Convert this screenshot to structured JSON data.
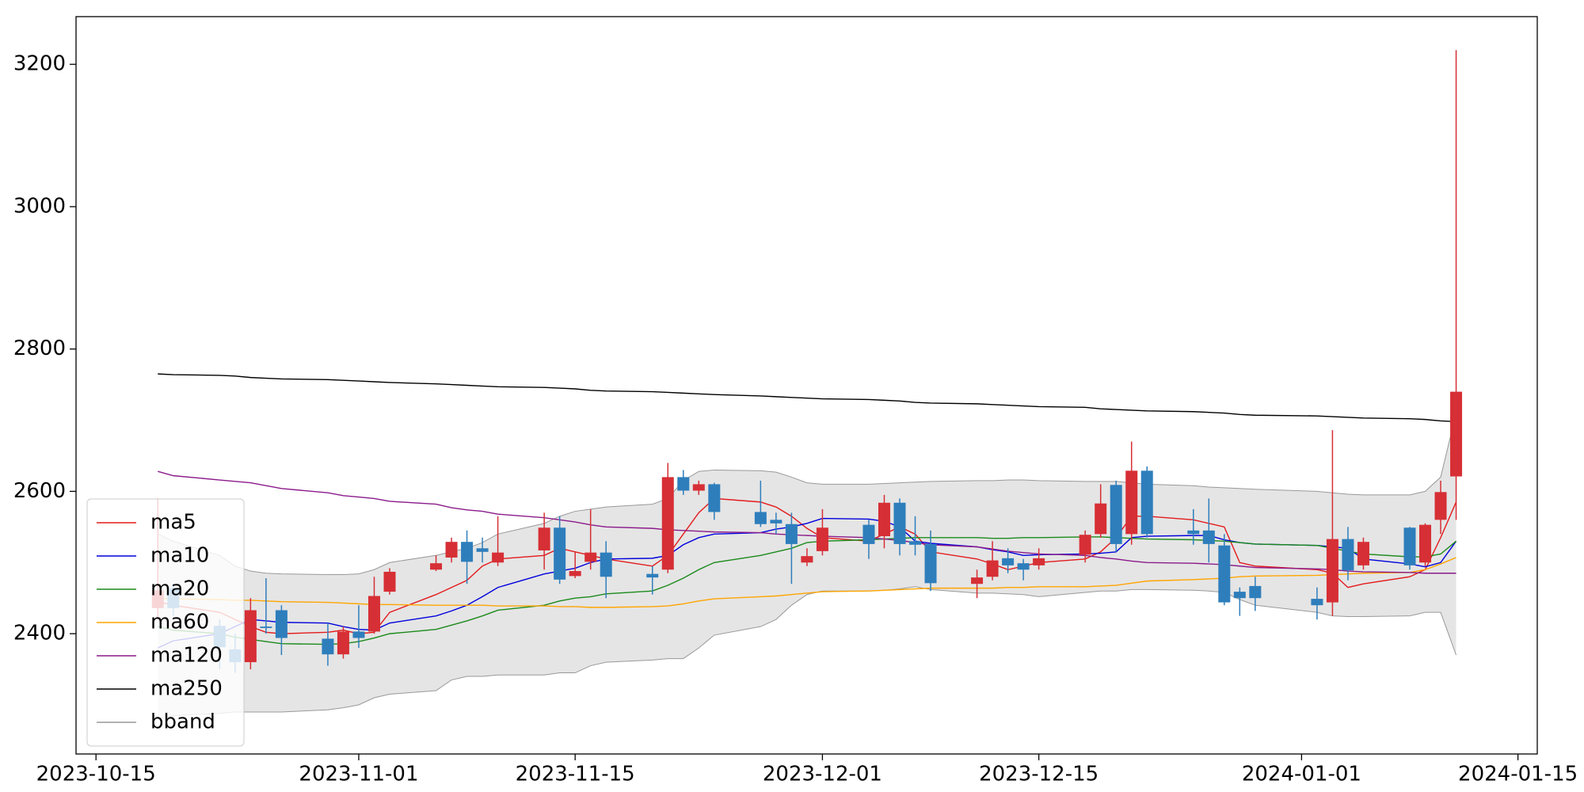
{
  "chart_data": {
    "type": "candlestick",
    "x": [
      "2023-10-19",
      "2023-10-20",
      "2023-10-23",
      "2023-10-24",
      "2023-10-25",
      "2023-10-26",
      "2023-10-27",
      "2023-10-30",
      "2023-10-31",
      "2023-11-01",
      "2023-11-02",
      "2023-11-03",
      "2023-11-06",
      "2023-11-07",
      "2023-11-08",
      "2023-11-09",
      "2023-11-10",
      "2023-11-13",
      "2023-11-14",
      "2023-11-15",
      "2023-11-16",
      "2023-11-17",
      "2023-11-20",
      "2023-11-21",
      "2023-11-22",
      "2023-11-23",
      "2023-11-24",
      "2023-11-27",
      "2023-11-28",
      "2023-11-29",
      "2023-11-30",
      "2023-12-01",
      "2023-12-04",
      "2023-12-05",
      "2023-12-06",
      "2023-12-07",
      "2023-12-08",
      "2023-12-11",
      "2023-12-12",
      "2023-12-13",
      "2023-12-14",
      "2023-12-15",
      "2023-12-18",
      "2023-12-19",
      "2023-12-20",
      "2023-12-21",
      "2023-12-22",
      "2023-12-25",
      "2023-12-26",
      "2023-12-27",
      "2023-12-28",
      "2023-12-29",
      "2024-01-02",
      "2024-01-03",
      "2024-01-04",
      "2024-01-05",
      "2024-01-08",
      "2024-01-09",
      "2024-01-10",
      "2024-01-11"
    ],
    "open": [
      2436,
      2464,
      2411,
      2378,
      2360,
      2410,
      2433,
      2393,
      2371,
      2403,
      2403,
      2459,
      2490,
      2507,
      2529,
      2520,
      2500,
      2517,
      2549,
      2481,
      2501,
      2514,
      2484,
      2490,
      2620,
      2601,
      2610,
      2571,
      2560,
      2554,
      2500,
      2516,
      2553,
      2537,
      2584,
      2530,
      2526,
      2470,
      2480,
      2506,
      2499,
      2496,
      2511,
      2540,
      2609,
      2540,
      2629,
      2545,
      2545,
      2524,
      2459,
      2467,
      2449,
      2444,
      2533,
      2496,
      2549,
      2500,
      2560,
      2621
    ],
    "high": [
      2590,
      2470,
      2420,
      2400,
      2450,
      2478,
      2440,
      2415,
      2410,
      2440,
      2480,
      2492,
      2510,
      2535,
      2545,
      2535,
      2565,
      2570,
      2565,
      2515,
      2575,
      2530,
      2495,
      2640,
      2630,
      2615,
      2612,
      2615,
      2570,
      2570,
      2520,
      2575,
      2560,
      2595,
      2590,
      2565,
      2545,
      2490,
      2530,
      2520,
      2505,
      2520,
      2545,
      2610,
      2615,
      2670,
      2635,
      2575,
      2590,
      2540,
      2465,
      2480,
      2465,
      2686,
      2550,
      2535,
      2550,
      2555,
      2615,
      3220
    ],
    "low": [
      2420,
      2425,
      2350,
      2345,
      2350,
      2400,
      2370,
      2355,
      2365,
      2380,
      2400,
      2455,
      2488,
      2500,
      2470,
      2500,
      2495,
      2490,
      2470,
      2478,
      2490,
      2450,
      2455,
      2485,
      2595,
      2595,
      2560,
      2550,
      2540,
      2470,
      2495,
      2510,
      2505,
      2520,
      2510,
      2510,
      2460,
      2450,
      2475,
      2485,
      2475,
      2490,
      2500,
      2535,
      2515,
      2525,
      2535,
      2525,
      2500,
      2440,
      2425,
      2432,
      2420,
      2425,
      2475,
      2490,
      2490,
      2495,
      2540,
      2560
    ],
    "close": [
      2461,
      2436,
      2381,
      2360,
      2433,
      2408,
      2394,
      2371,
      2403,
      2394,
      2453,
      2487,
      2499,
      2529,
      2501,
      2515,
      2514,
      2549,
      2476,
      2488,
      2514,
      2480,
      2479,
      2620,
      2601,
      2610,
      2571,
      2554,
      2555,
      2526,
      2509,
      2549,
      2526,
      2584,
      2526,
      2525,
      2471,
      2479,
      2503,
      2496,
      2490,
      2506,
      2539,
      2583,
      2526,
      2629,
      2540,
      2540,
      2526,
      2444,
      2450,
      2450,
      2440,
      2533,
      2489,
      2529,
      2496,
      2553,
      2599,
      2740
    ],
    "up_color": "#d62f35",
    "down_color": "#2e7ebc",
    "band": {
      "name": "bband",
      "color": "#e5e5e5",
      "edge_color": "#999999",
      "upper": [
        2540,
        2530,
        2510,
        2495,
        2488,
        2485,
        2484,
        2483,
        2483,
        2484,
        2490,
        2500,
        2510,
        2515,
        2520,
        2528,
        2540,
        2555,
        2565,
        2572,
        2575,
        2578,
        2582,
        2590,
        2615,
        2628,
        2630,
        2629,
        2627,
        2620,
        2612,
        2610,
        2610,
        2611,
        2612,
        2613,
        2614,
        2615,
        2615,
        2616,
        2616,
        2615,
        2614,
        2614,
        2614,
        2612,
        2610,
        2608,
        2606,
        2605,
        2604,
        2603,
        2600,
        2598,
        2596,
        2595,
        2595,
        2600,
        2620,
        2710
      ],
      "lower": [
        2280,
        2285,
        2288,
        2290,
        2290,
        2290,
        2290,
        2293,
        2296,
        2300,
        2310,
        2315,
        2320,
        2335,
        2340,
        2340,
        2342,
        2342,
        2345,
        2345,
        2355,
        2360,
        2363,
        2365,
        2365,
        2380,
        2398,
        2410,
        2420,
        2440,
        2455,
        2460,
        2460,
        2461,
        2463,
        2466,
        2462,
        2457,
        2457,
        2456,
        2455,
        2452,
        2458,
        2460,
        2460,
        2462,
        2462,
        2461,
        2460,
        2458,
        2448,
        2440,
        2430,
        2425,
        2424,
        2424,
        2425,
        2430,
        2430,
        2370
      ]
    },
    "series": [
      {
        "name": "ma5",
        "color": "#e41a1c",
        "values": [
          2445,
          2440,
          2430,
          2420,
          2410,
          2402,
          2400,
          2402,
          2405,
          2400,
          2402,
          2430,
          2455,
          2465,
          2475,
          2495,
          2505,
          2510,
          2520,
          2515,
          2510,
          2505,
          2495,
          2510,
          2540,
          2570,
          2590,
          2585,
          2578,
          2565,
          2548,
          2535,
          2530,
          2540,
          2550,
          2540,
          2515,
          2505,
          2498,
          2490,
          2495,
          2500,
          2505,
          2515,
          2535,
          2565,
          2565,
          2560,
          2555,
          2550,
          2500,
          2495,
          2490,
          2485,
          2465,
          2470,
          2480,
          2490,
          2535,
          2585
        ]
      },
      {
        "name": "ma10",
        "color": "#0000dd",
        "values": [
          2380,
          2390,
          2400,
          2410,
          2420,
          2418,
          2416,
          2415,
          2410,
          2406,
          2405,
          2415,
          2425,
          2432,
          2440,
          2452,
          2465,
          2484,
          2488,
          2492,
          2500,
          2505,
          2506,
          2510,
          2525,
          2535,
          2540,
          2542,
          2547,
          2550,
          2555,
          2562,
          2561,
          2558,
          2550,
          2530,
          2527,
          2522,
          2518,
          2515,
          2510,
          2511,
          2512,
          2513,
          2515,
          2535,
          2537,
          2538,
          2538,
          2532,
          2528,
          2526,
          2524,
          2522,
          2520,
          2505,
          2498,
          2494,
          2500,
          2530
        ]
      },
      {
        "name": "ma20",
        "color": "#1a8a1a",
        "values": [
          2410,
          2405,
          2400,
          2395,
          2392,
          2389,
          2386,
          2385,
          2386,
          2389,
          2394,
          2400,
          2406,
          2412,
          2418,
          2425,
          2433,
          2440,
          2446,
          2450,
          2452,
          2456,
          2460,
          2468,
          2478,
          2490,
          2500,
          2510,
          2515,
          2520,
          2528,
          2530,
          2532,
          2533,
          2534,
          2535,
          2535,
          2535,
          2534,
          2534,
          2535,
          2535,
          2536,
          2536,
          2535,
          2534,
          2533,
          2532,
          2531,
          2530,
          2528,
          2526,
          2524,
          2520,
          2516,
          2512,
          2508,
          2508,
          2512,
          2530
        ]
      },
      {
        "name": "ma60",
        "color": "#ffa500",
        "values": [
          2450,
          2449,
          2448,
          2447,
          2447,
          2446,
          2445,
          2444,
          2443,
          2442,
          2441,
          2441,
          2440,
          2440,
          2440,
          2440,
          2439,
          2439,
          2438,
          2438,
          2437,
          2437,
          2438,
          2439,
          2442,
          2446,
          2449,
          2452,
          2453,
          2455,
          2457,
          2459,
          2460,
          2461,
          2462,
          2463,
          2464,
          2464,
          2464,
          2465,
          2465,
          2466,
          2466,
          2467,
          2468,
          2471,
          2474,
          2476,
          2477,
          2478,
          2480,
          2481,
          2482,
          2483,
          2484,
          2485,
          2486,
          2490,
          2498,
          2507
        ]
      },
      {
        "name": "ma120",
        "color": "#8b1a8b",
        "values": [
          2628,
          2622,
          2616,
          2614,
          2612,
          2608,
          2604,
          2598,
          2594,
          2592,
          2590,
          2586,
          2582,
          2577,
          2574,
          2572,
          2568,
          2563,
          2560,
          2557,
          2553,
          2550,
          2548,
          2546,
          2545,
          2544,
          2543,
          2542,
          2540,
          2539,
          2538,
          2537,
          2535,
          2533,
          2531,
          2528,
          2525,
          2522,
          2519,
          2516,
          2514,
          2512,
          2510,
          2507,
          2505,
          2502,
          2500,
          2499,
          2498,
          2497,
          2495,
          2493,
          2491,
          2490,
          2488,
          2487,
          2486,
          2485,
          2485,
          2485
        ]
      },
      {
        "name": "ma250",
        "color": "#000000",
        "values": [
          2765,
          2764,
          2763,
          2762,
          2760,
          2759,
          2758,
          2757,
          2756,
          2755,
          2754,
          2753,
          2751,
          2750,
          2749,
          2748,
          2747,
          2746,
          2745,
          2744,
          2742,
          2741,
          2740,
          2739,
          2738,
          2737,
          2736,
          2734,
          2733,
          2732,
          2731,
          2730,
          2729,
          2728,
          2727,
          2725,
          2724,
          2723,
          2722,
          2721,
          2720,
          2719,
          2718,
          2716,
          2715,
          2714,
          2713,
          2712,
          2711,
          2710,
          2708,
          2707,
          2706,
          2705,
          2704,
          2703,
          2702,
          2701,
          2699,
          2698
        ]
      }
    ],
    "xlim": [
      "2023-10-13T17:00",
      "2024-01-16T06:00"
    ],
    "xticks": [
      "2023-10-15",
      "2023-11-01",
      "2023-11-15",
      "2023-12-01",
      "2023-12-15",
      "2024-01-01",
      "2024-01-15"
    ],
    "ylim": [
      2231,
      3267
    ],
    "yticks": [
      2400,
      2600,
      2800,
      3000,
      3200
    ],
    "legend": "lower left"
  }
}
